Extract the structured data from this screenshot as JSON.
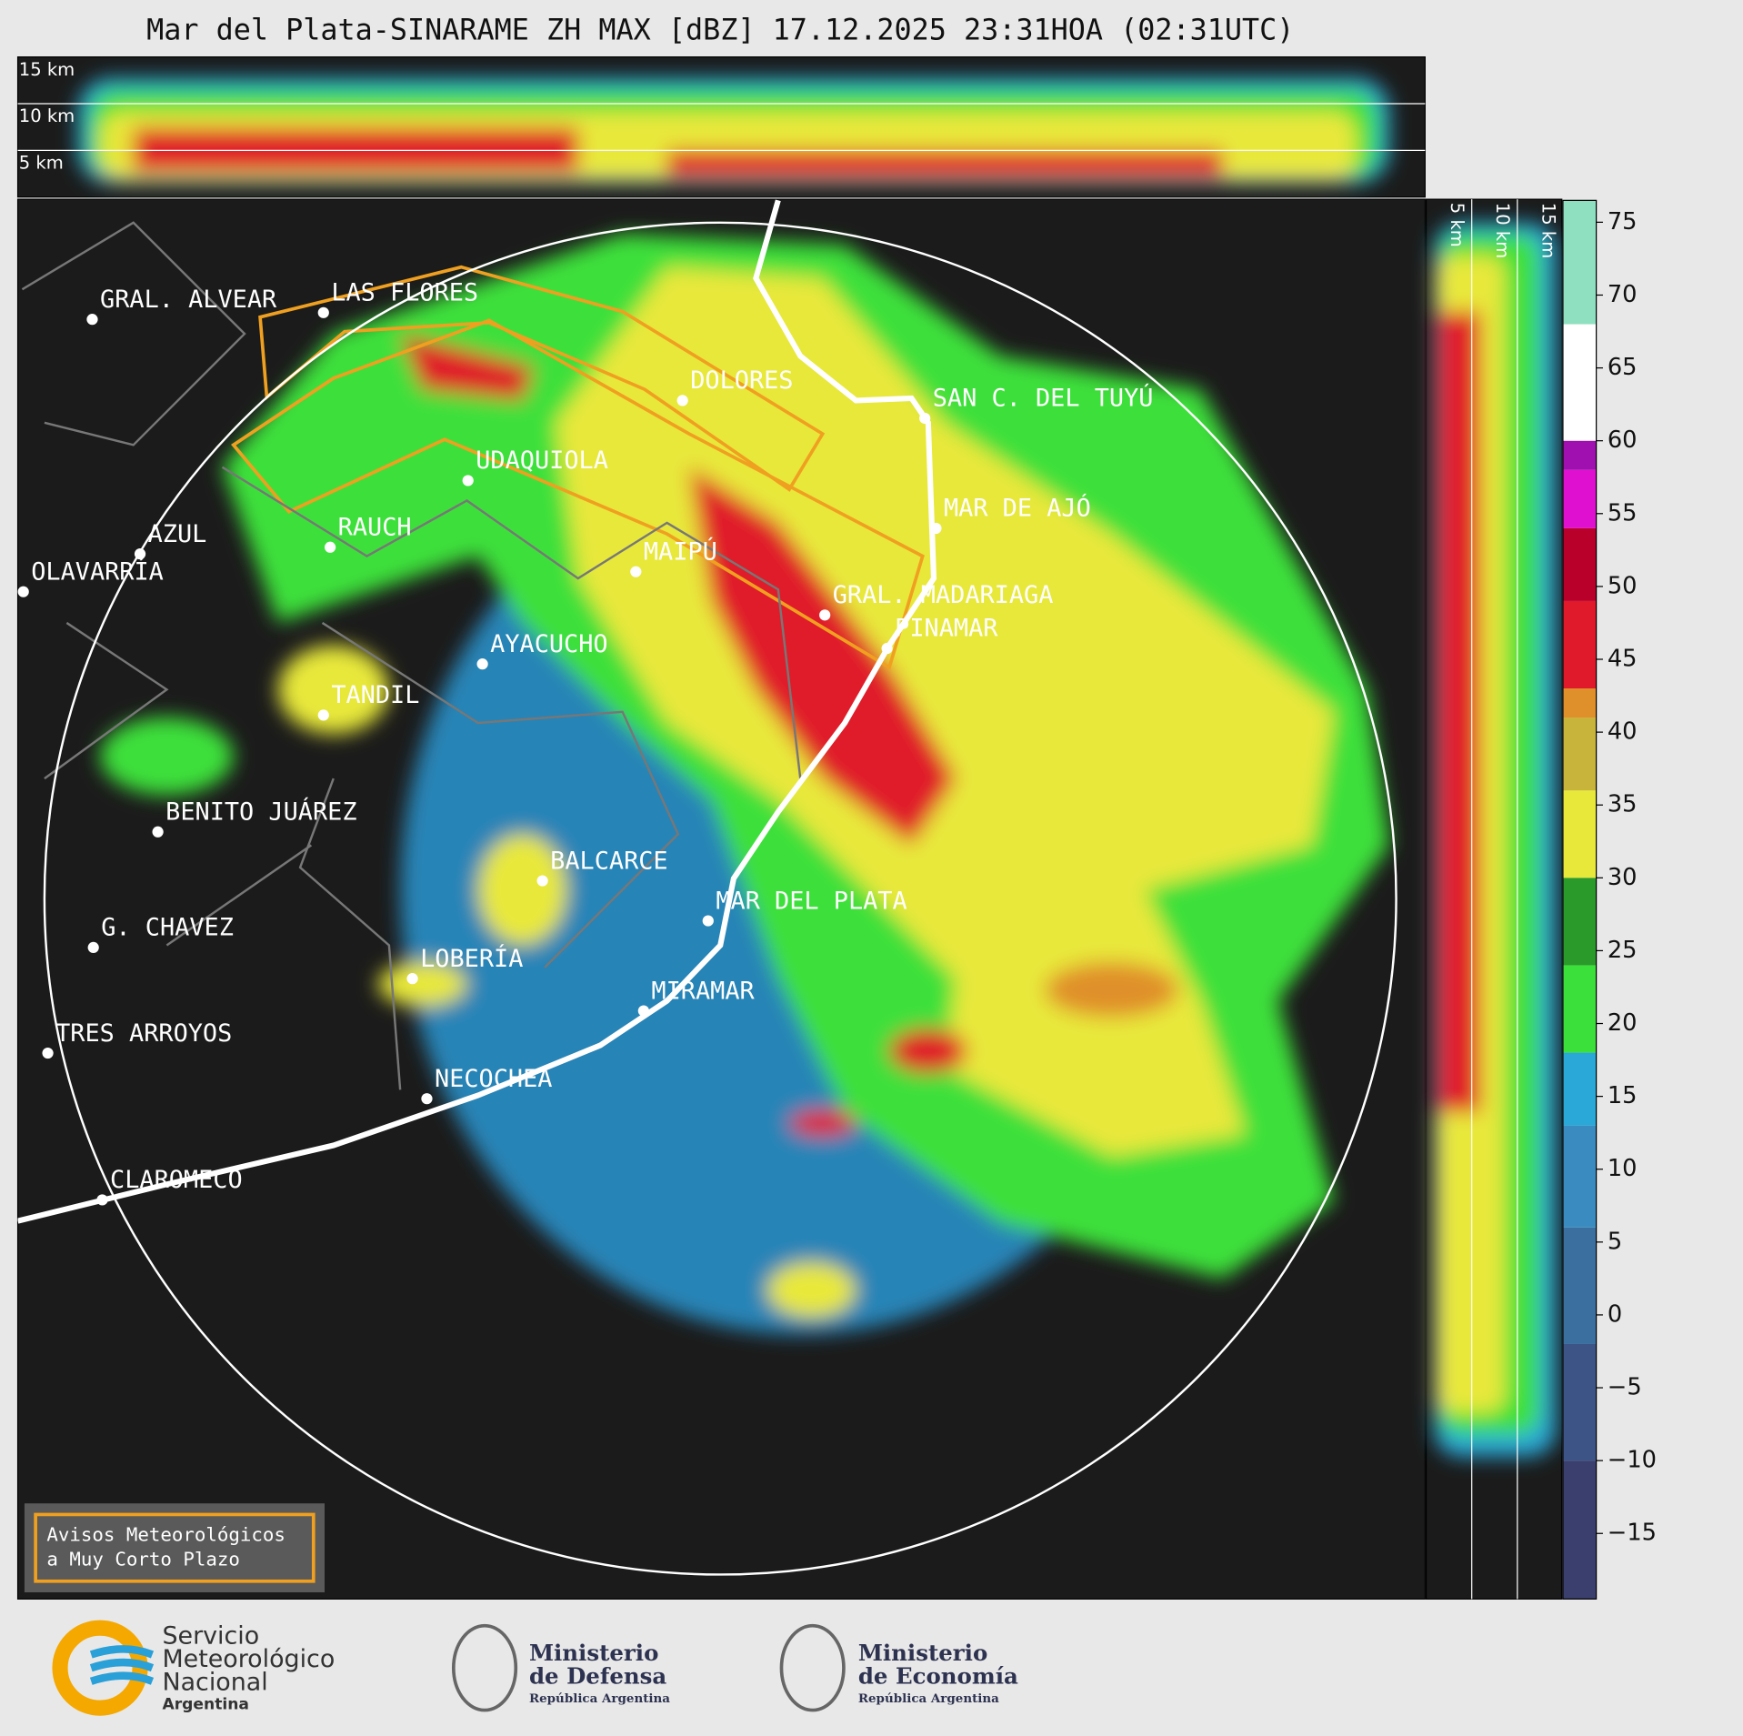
{
  "title": "Mar del Plata-SINARAME ZH MAX [dBZ] 17.12.2025 23:31HOA (02:31UTC)",
  "top_panel": {
    "altitudes": [
      "15 km",
      "10 km",
      "5 km"
    ]
  },
  "side_panel": {
    "altitudes": [
      "5 km",
      "10 km",
      "15 km"
    ]
  },
  "cities": [
    "GRAL. ALVEAR",
    "LAS FLORES",
    "DOLORES",
    "SAN C. DEL TUYÚ",
    "UDAQUIOLA",
    "AZUL",
    "RAUCH",
    "OLAVARRÍA",
    "MAIPÚ",
    "MAR DE AJÓ",
    "GRAL. MADARIAGA",
    "PINAMAR",
    "AYACUCHO",
    "TANDIL",
    "BENITO JUÁREZ",
    "BALCARCE",
    "MAR DEL PLATA",
    "G. CHAVEZ",
    "LOBERÍA",
    "MIRAMAR",
    "TRES ARROYOS",
    "NECOCHEA",
    "CLAROMECO"
  ],
  "legend": [
    "Avisos Meteorológicos",
    "a Muy Corto Plazo"
  ],
  "colorbar": {
    "lim": [
      -19.5,
      76.5
    ],
    "ticks": [
      {
        "value": -15,
        "label": "−15"
      },
      {
        "value": -10,
        "label": "−10"
      },
      {
        "value": -5,
        "label": "−5"
      },
      0,
      5,
      10,
      15,
      20,
      25,
      30,
      35,
      40,
      45,
      50,
      55,
      60,
      65,
      70,
      75
    ],
    "bounds": [
      -19.5,
      -10,
      -2,
      6,
      13,
      18,
      24,
      30,
      36,
      41,
      43,
      49,
      54,
      58,
      60,
      68,
      76.5
    ],
    "colors": [
      "#3a3f6e",
      "#3d5586",
      "#3b6fa0",
      "#3a8cc0",
      "#2aa8d8",
      "#3ce03a",
      "#2a9a2a",
      "#e8e83a",
      "#c8b43a",
      "#e0902a",
      "#e01a2a",
      "#b8002a",
      "#e010d0",
      "#a010b0",
      "#ffffff",
      "#8ee0c0"
    ]
  },
  "logos": {
    "smn": [
      "Servicio",
      "Meteorológico",
      "Nacional",
      "Argentina"
    ],
    "defensa": [
      "Ministerio",
      "de Defensa",
      "República Argentina"
    ],
    "economia": [
      "Ministerio",
      "de Economía",
      "República Argentina"
    ]
  }
}
